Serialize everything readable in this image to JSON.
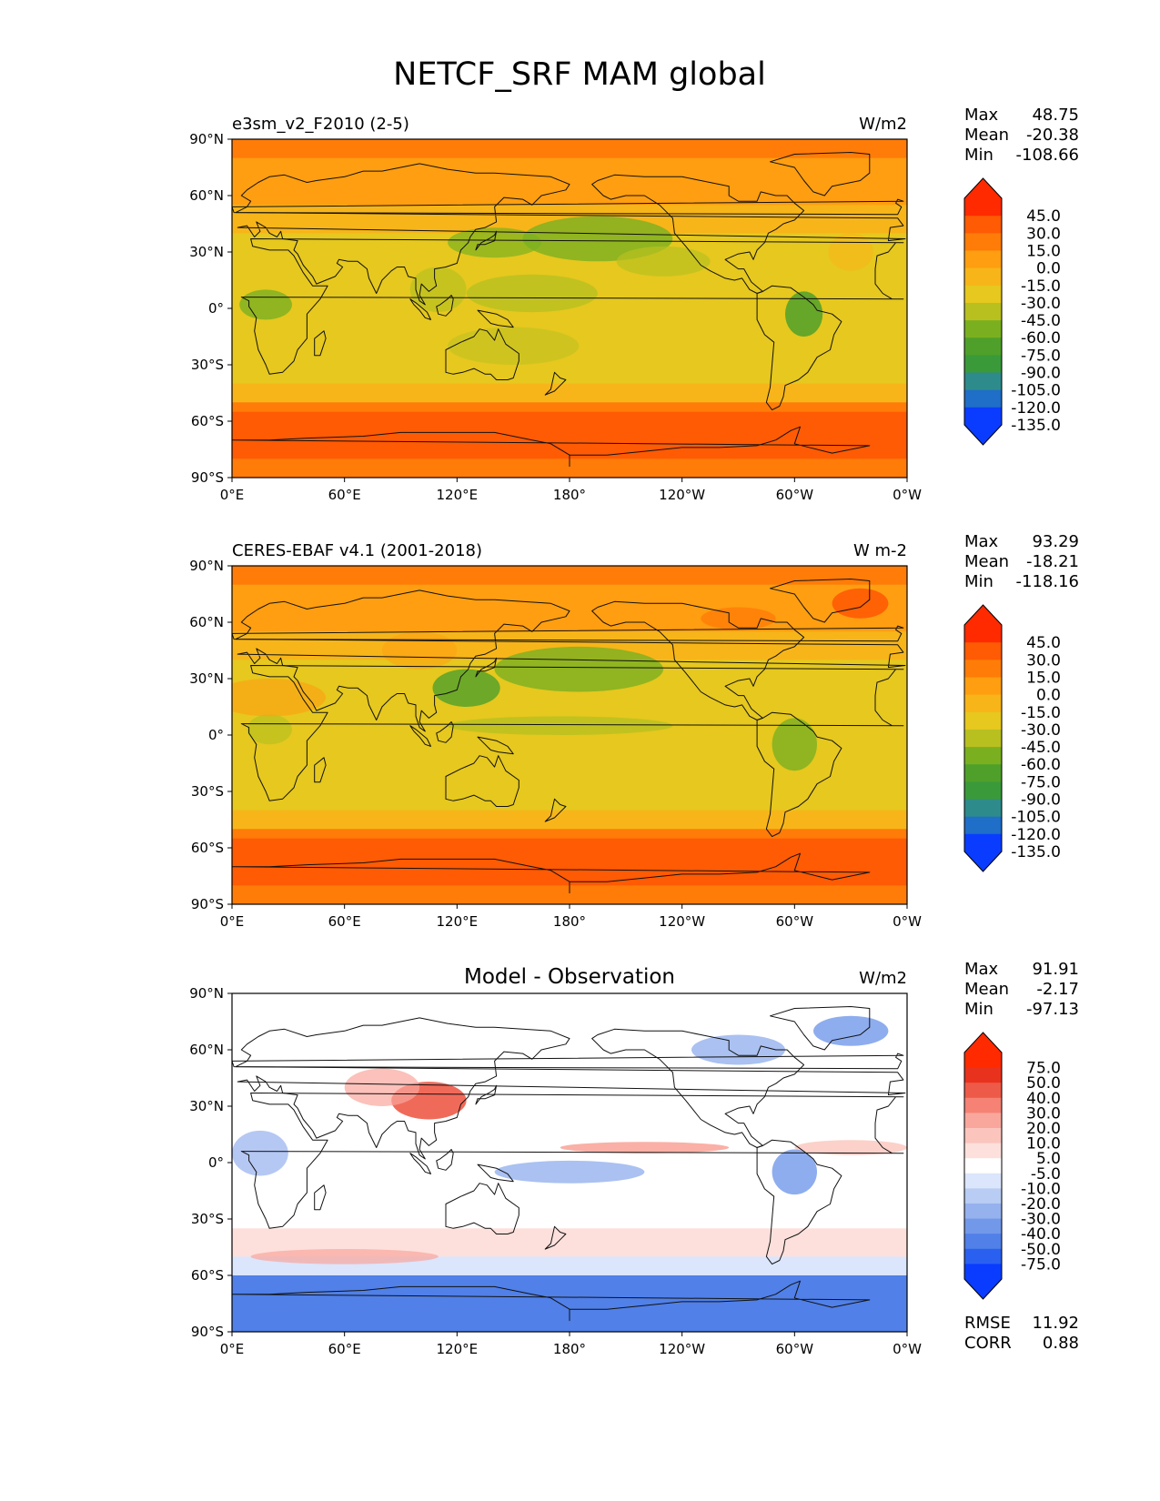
{
  "title": "NETCF_SRF MAM global",
  "x_ticks": [
    "0°E",
    "60°E",
    "120°E",
    "180°",
    "120°W",
    "60°W",
    "0°W"
  ],
  "y_ticks": [
    "90°N",
    "60°N",
    "30°N",
    "0°",
    "30°S",
    "60°S",
    "90°S"
  ],
  "stat_labels": {
    "max": "Max",
    "mean": "Mean",
    "min": "Min",
    "rmse": "RMSE",
    "corr": "CORR"
  },
  "colors": {
    "abs_levels": [
      "#0a3cff",
      "#1f6ec8",
      "#2e8b8b",
      "#3a9a3a",
      "#4fa02a",
      "#7ab020",
      "#b8c020",
      "#e6c81e",
      "#f7b519",
      "#ff9e10",
      "#ff7c08",
      "#ff5a04",
      "#ff2a00"
    ],
    "diff_levels": [
      "#0a3cff",
      "#2a60f0",
      "#5080e8",
      "#7298ea",
      "#95b1ee",
      "#b8ccf4",
      "#dbe5fb",
      "#ffffff",
      "#fde0dc",
      "#fbc5bd",
      "#f9a79c",
      "#f58274",
      "#ee5a48",
      "#e8321e",
      "#ff2a00"
    ]
  },
  "panels": [
    {
      "name": "test",
      "left_title": "e3sm_v2_F2010 (2-5)",
      "center_title": "",
      "units": "W/m2",
      "stats": {
        "max": "48.75",
        "mean": "-20.38",
        "min": "-108.66"
      },
      "colorbar_labels": [
        "45.0",
        "30.0",
        "15.0",
        "0.0",
        "-15.0",
        "-30.0",
        "-45.0",
        "-60.0",
        "-75.0",
        "-90.0",
        "-105.0",
        "-120.0",
        "-135.0"
      ],
      "map_field": "model"
    },
    {
      "name": "reference",
      "left_title": "CERES-EBAF v4.1 (2001-2018)",
      "center_title": "",
      "units": "W m-2",
      "stats": {
        "max": "93.29",
        "mean": "-18.21",
        "min": "-118.16"
      },
      "colorbar_labels": [
        "45.0",
        "30.0",
        "15.0",
        "0.0",
        "-15.0",
        "-30.0",
        "-45.0",
        "-60.0",
        "-75.0",
        "-90.0",
        "-105.0",
        "-120.0",
        "-135.0"
      ],
      "map_field": "obs"
    },
    {
      "name": "difference",
      "left_title": "",
      "center_title": "Model - Observation",
      "units": "W/m2",
      "stats": {
        "max": "91.91",
        "mean": "-2.17",
        "min": "-97.13"
      },
      "colorbar_labels": [
        "75.0",
        "50.0",
        "40.0",
        "30.0",
        "20.0",
        "10.0",
        "5.0",
        "-5.0",
        "-10.0",
        "-20.0",
        "-30.0",
        "-40.0",
        "-50.0",
        "-75.0"
      ],
      "extra_stats": {
        "rmse": "11.92",
        "corr": "0.88"
      },
      "map_field": "diff"
    }
  ],
  "chart_data": [
    {
      "type": "heatmap",
      "title": "e3sm_v2_F2010 (2-5)",
      "units": "W/m2",
      "xlim": [
        0,
        360
      ],
      "ylim": [
        -90,
        90
      ],
      "levels": [
        -135,
        -120,
        -105,
        -90,
        -75,
        -60,
        -45,
        -30,
        -15,
        0,
        15,
        30,
        45
      ],
      "max": 48.75,
      "mean": -20.38,
      "min": -108.66
    },
    {
      "type": "heatmap",
      "title": "CERES-EBAF v4.1 (2001-2018)",
      "units": "W m-2",
      "xlim": [
        0,
        360
      ],
      "ylim": [
        -90,
        90
      ],
      "levels": [
        -135,
        -120,
        -105,
        -90,
        -75,
        -60,
        -45,
        -30,
        -15,
        0,
        15,
        30,
        45
      ],
      "max": 93.29,
      "mean": -18.21,
      "min": -118.16
    },
    {
      "type": "heatmap",
      "title": "Model - Observation",
      "units": "W/m2",
      "xlim": [
        0,
        360
      ],
      "ylim": [
        -90,
        90
      ],
      "levels": [
        -75,
        -50,
        -40,
        -30,
        -20,
        -10,
        -5,
        5,
        10,
        20,
        30,
        40,
        50,
        75
      ],
      "max": 91.91,
      "mean": -2.17,
      "min": -97.13,
      "rmse": 11.92,
      "corr": 0.88
    }
  ]
}
